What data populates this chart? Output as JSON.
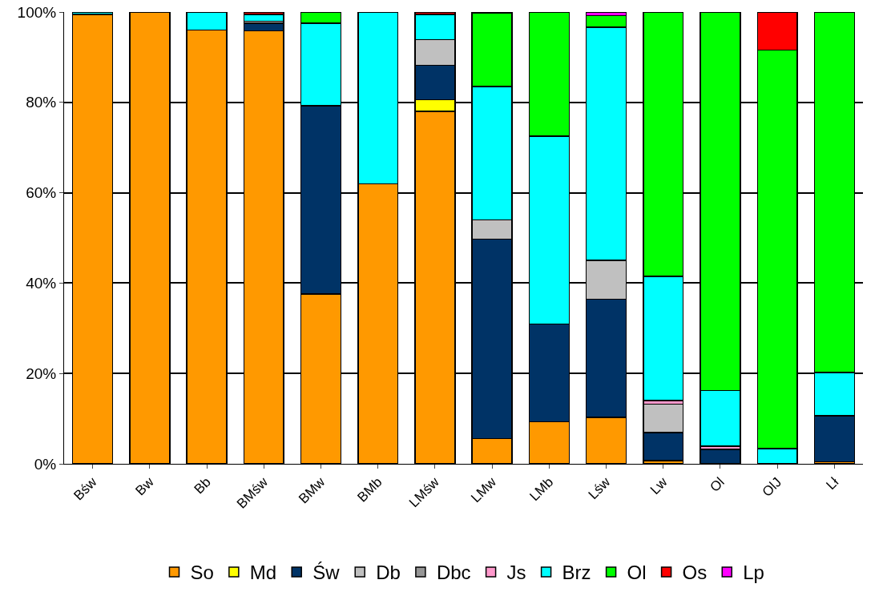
{
  "chart_data": {
    "type": "bar",
    "stacked": true,
    "categories": [
      "Bśw",
      "Bw",
      "Bb",
      "BMśw",
      "BMw",
      "BMb",
      "LMśw",
      "LMw",
      "LMb",
      "Lśw",
      "Lw",
      "Ol",
      "OlJ",
      "Lł"
    ],
    "ylim": [
      0,
      100
    ],
    "yticks": [
      {
        "value": 0,
        "label": "0%"
      },
      {
        "value": 20,
        "label": "20%"
      },
      {
        "value": 40,
        "label": "40%"
      },
      {
        "value": 60,
        "label": "60%"
      },
      {
        "value": 80,
        "label": "80%"
      },
      {
        "value": 100,
        "label": "100%"
      }
    ],
    "grid": "y",
    "legend": "bottom",
    "series": [
      {
        "name": "So",
        "color": "#ff9900",
        "values": [
          99.5,
          100,
          96,
          95.8,
          37.6,
          62,
          78,
          5.6,
          9.3,
          10.3,
          0.7,
          null,
          null,
          0.4
        ]
      },
      {
        "name": "Md",
        "color": "#ffff00",
        "values": [
          null,
          null,
          null,
          null,
          null,
          null,
          2.6,
          null,
          null,
          null,
          null,
          null,
          null,
          null
        ]
      },
      {
        "name": "Św",
        "color": "#003366",
        "values": [
          null,
          null,
          null,
          1.7,
          41.7,
          null,
          7.6,
          44.1,
          21.6,
          26.1,
          6.2,
          3.2,
          null,
          10.2
        ]
      },
      {
        "name": "Db",
        "color": "#c0c0c0",
        "values": [
          null,
          null,
          null,
          0.5,
          null,
          null,
          5.7,
          4.3,
          null,
          8.6,
          6.3,
          null,
          null,
          null
        ]
      },
      {
        "name": "Dbc",
        "color": "#969696",
        "values": [
          null,
          null,
          null,
          null,
          null,
          null,
          null,
          null,
          null,
          null,
          null,
          null,
          null,
          null
        ]
      },
      {
        "name": "Js",
        "color": "#ff99cc",
        "values": [
          null,
          null,
          null,
          null,
          null,
          null,
          null,
          null,
          null,
          null,
          0.8,
          0.7,
          null,
          null
        ]
      },
      {
        "name": "Brz",
        "color": "#00ffff",
        "values": [
          0.5,
          null,
          4,
          1.5,
          18.2,
          38,
          5.6,
          29.5,
          41.6,
          51.6,
          27.5,
          12.3,
          3.4,
          9.6
        ]
      },
      {
        "name": "Ol",
        "color": "#00ff00",
        "values": [
          null,
          null,
          null,
          null,
          2.5,
          null,
          null,
          16.2,
          27.5,
          2.6,
          58.5,
          83.8,
          88.2,
          79.8
        ]
      },
      {
        "name": "Os",
        "color": "#ff0000",
        "values": [
          null,
          null,
          null,
          0.5,
          null,
          null,
          0.5,
          0.3,
          null,
          null,
          null,
          null,
          8.4,
          null
        ]
      },
      {
        "name": "Lp",
        "color": "#ff00ff",
        "values": [
          null,
          null,
          null,
          null,
          null,
          null,
          null,
          null,
          null,
          0.8,
          null,
          null,
          null,
          null
        ]
      }
    ]
  }
}
